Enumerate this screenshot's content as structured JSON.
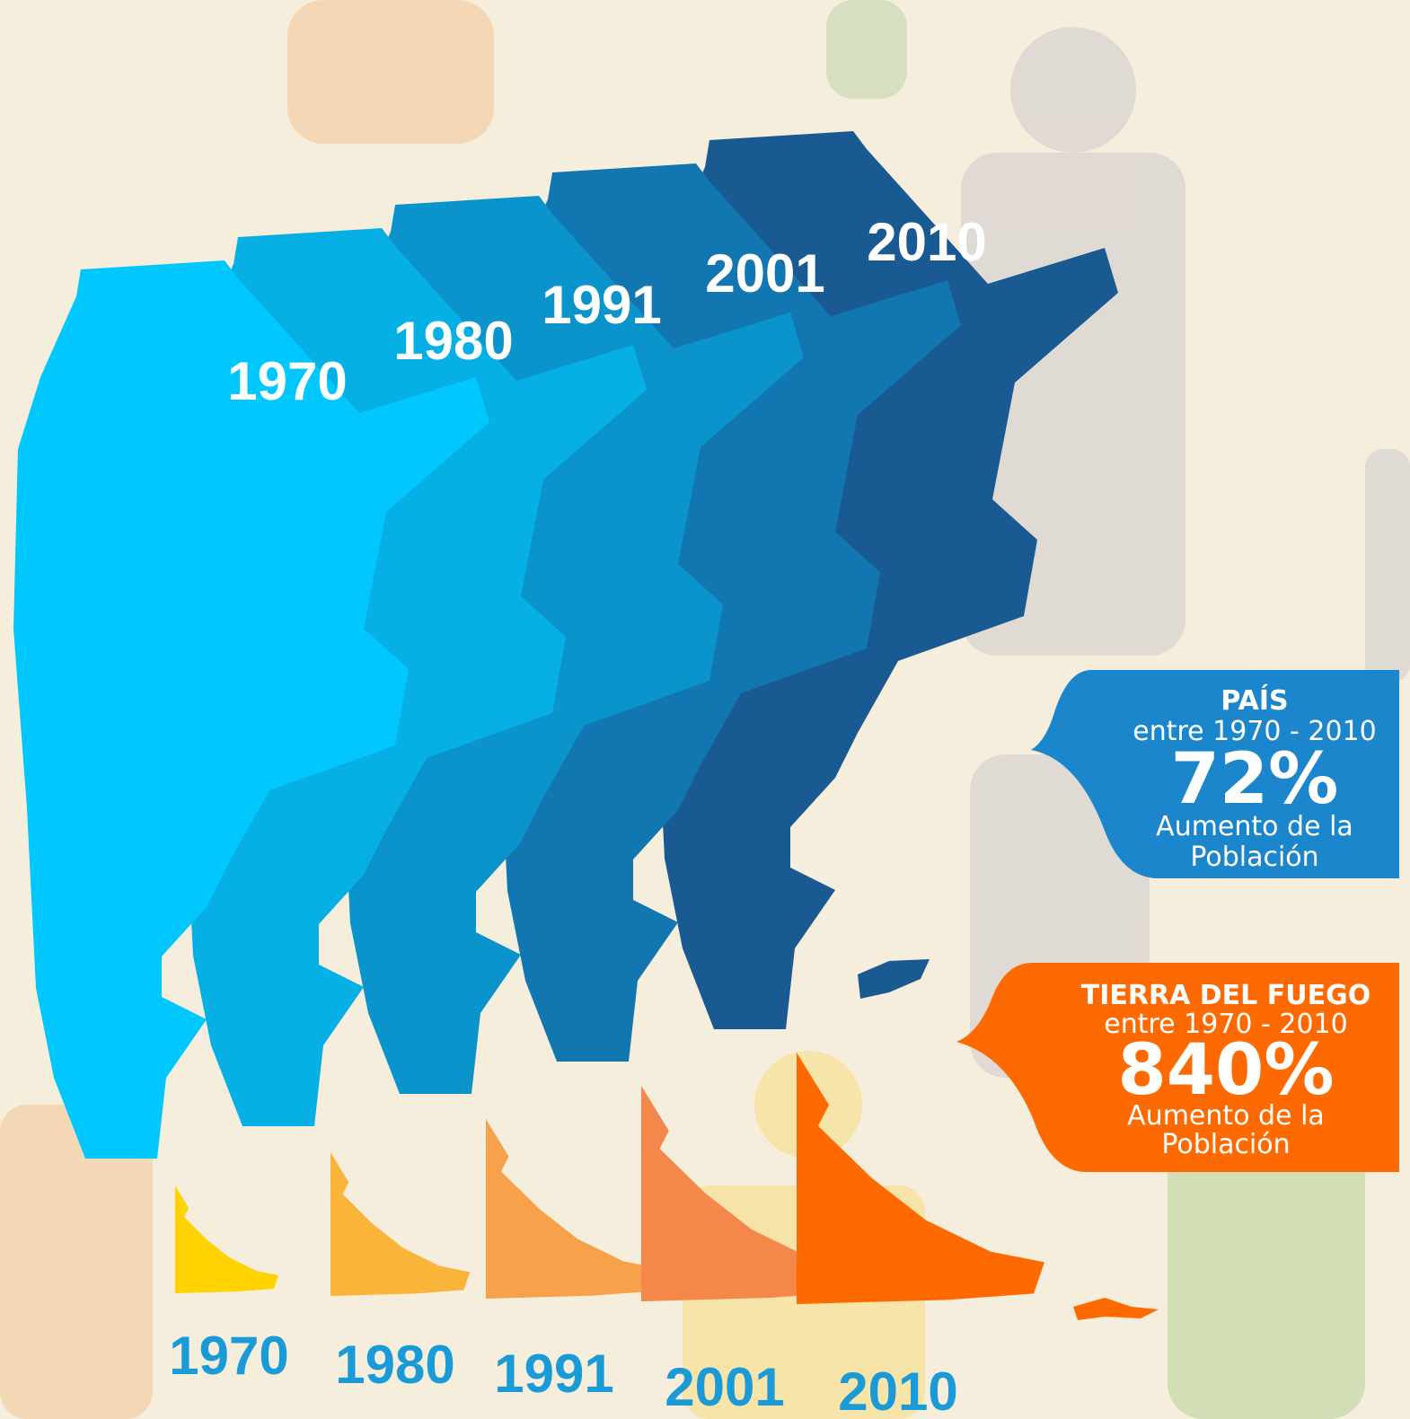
{
  "map_labels": [
    "1970",
    "1980",
    "1991",
    "2001",
    "2010"
  ],
  "tdf_labels": [
    "1970",
    "1980",
    "1991",
    "2001",
    "2010"
  ],
  "pais": {
    "title": "PAÍS",
    "period": "entre 1970 - 2010",
    "value": "72%",
    "caption": [
      "Aumento de la",
      "Población"
    ]
  },
  "tierra_del_fuego": {
    "title": "TIERRA DEL FUEGO",
    "period": "entre 1970 - 2010",
    "value": "840%",
    "caption": [
      "Aumento de la",
      "Población"
    ]
  }
}
